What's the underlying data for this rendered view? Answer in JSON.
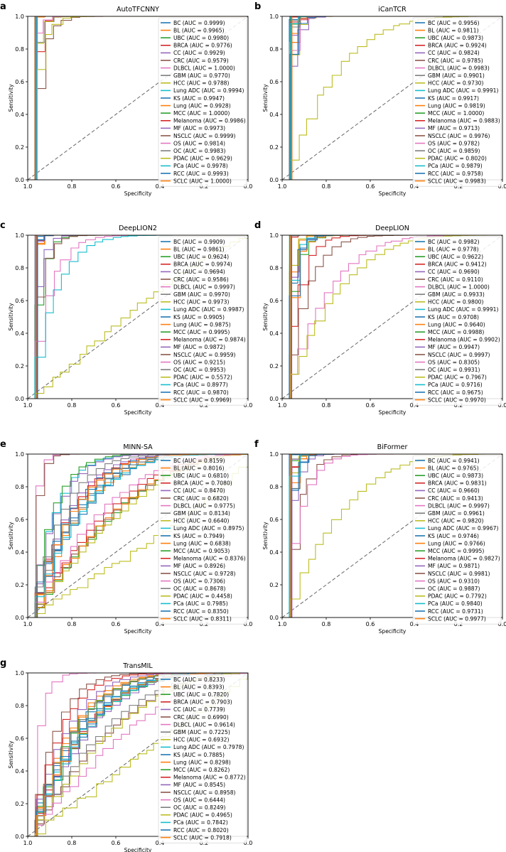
{
  "figure": {
    "x_tick_labels": [
      "1.0",
      "0.8",
      "0.6",
      "0.4",
      "0.2",
      "0.0"
    ],
    "y_tick_labels": [
      "0.0",
      "0.2",
      "0.4",
      "0.6",
      "0.8",
      "1.0"
    ]
  },
  "class_colors": {
    "BC": "#1f77b4",
    "BL": "#ff7f0e",
    "UBC": "#2ca02c",
    "BRCA": "#d62728",
    "CC": "#9467bd",
    "CRC": "#8c564b",
    "DLBCL": "#e377c2",
    "GBM": "#7f7f7f",
    "HCC": "#bcbd22",
    "Lung ADC": "#17becf",
    "KS": "#1f77b4",
    "Lung": "#ff7f0e",
    "MCC": "#2ca02c",
    "Melanoma": "#d62728",
    "MF": "#9467bd",
    "NSCLC": "#8c564b",
    "OS": "#e377c2",
    "OC": "#7f7f7f",
    "PDAC": "#bcbd22",
    "PCa": "#17becf",
    "RCC": "#1f77b4",
    "SCLC": "#ff7f0e"
  },
  "chart_data": [
    {
      "type": "line",
      "panel": "a",
      "title": "AutoTFCNNY",
      "xlabel": "Specificity",
      "ylabel": "Sensitivity",
      "xlim": [
        1.0,
        0.0
      ],
      "ylim": [
        0.0,
        1.0
      ],
      "chance_line": true,
      "series": [
        {
          "name": "BC",
          "auc": "0.9999"
        },
        {
          "name": "BL",
          "auc": "0.9965"
        },
        {
          "name": "UBC",
          "auc": "0.9980"
        },
        {
          "name": "BRCA",
          "auc": "0.9776"
        },
        {
          "name": "CC",
          "auc": "0.9929"
        },
        {
          "name": "CRC",
          "auc": "0.9579"
        },
        {
          "name": "DLBCL",
          "auc": "1.0000"
        },
        {
          "name": "GBM",
          "auc": "0.9770"
        },
        {
          "name": "HCC",
          "auc": "0.9788"
        },
        {
          "name": "Lung ADC",
          "auc": "0.9994"
        },
        {
          "name": "KS",
          "auc": "0.9947"
        },
        {
          "name": "Lung",
          "auc": "0.9928"
        },
        {
          "name": "MCC",
          "auc": "1.0000"
        },
        {
          "name": "Melanoma",
          "auc": "0.9986"
        },
        {
          "name": "MF",
          "auc": "0.9973"
        },
        {
          "name": "NSCLC",
          "auc": "0.9999"
        },
        {
          "name": "OS",
          "auc": "0.9814"
        },
        {
          "name": "OC",
          "auc": "0.9983"
        },
        {
          "name": "PDAC",
          "auc": "0.9629"
        },
        {
          "name": "PCa",
          "auc": "0.9978"
        },
        {
          "name": "RCC",
          "auc": "0.9993"
        },
        {
          "name": "SCLC",
          "auc": "1.0000"
        }
      ]
    },
    {
      "type": "line",
      "panel": "b",
      "title": "iCanTCR",
      "xlabel": "Specificity",
      "ylabel": "Sensitivity",
      "xlim": [
        1.0,
        0.0
      ],
      "ylim": [
        0.0,
        1.0
      ],
      "chance_line": true,
      "series": [
        {
          "name": "BC",
          "auc": "0.9956"
        },
        {
          "name": "BL",
          "auc": "0.9811"
        },
        {
          "name": "UBC",
          "auc": "0.9873"
        },
        {
          "name": "BRCA",
          "auc": "0.9924"
        },
        {
          "name": "CC",
          "auc": "0.9824"
        },
        {
          "name": "CRC",
          "auc": "0.9785"
        },
        {
          "name": "DLBCL",
          "auc": "0.9983"
        },
        {
          "name": "GBM",
          "auc": "0.9901"
        },
        {
          "name": "HCC",
          "auc": "0.9730"
        },
        {
          "name": "Lung ADC",
          "auc": "0.9991"
        },
        {
          "name": "KS",
          "auc": "0.9917"
        },
        {
          "name": "Lung",
          "auc": "0.9819"
        },
        {
          "name": "MCC",
          "auc": "1.0000"
        },
        {
          "name": "Melanoma",
          "auc": "0.9883"
        },
        {
          "name": "MF",
          "auc": "0.9713"
        },
        {
          "name": "NSCLC",
          "auc": "0.9976"
        },
        {
          "name": "OS",
          "auc": "0.9782"
        },
        {
          "name": "OC",
          "auc": "0.9859"
        },
        {
          "name": "PDAC",
          "auc": "0.8020"
        },
        {
          "name": "PCa",
          "auc": "0.9879"
        },
        {
          "name": "RCC",
          "auc": "0.9758"
        },
        {
          "name": "SCLC",
          "auc": "0.9983"
        }
      ]
    },
    {
      "type": "line",
      "panel": "c",
      "title": "DeepLION2",
      "xlabel": "Specificity",
      "ylabel": "Sensitivity",
      "xlim": [
        1.0,
        0.0
      ],
      "ylim": [
        0.0,
        1.0
      ],
      "chance_line": true,
      "series": [
        {
          "name": "BC",
          "auc": "0.9909"
        },
        {
          "name": "BL",
          "auc": "0.9861"
        },
        {
          "name": "UBC",
          "auc": "0.9624"
        },
        {
          "name": "BRCA",
          "auc": "0.9974"
        },
        {
          "name": "CC",
          "auc": "0.9694"
        },
        {
          "name": "CRC",
          "auc": "0.9586"
        },
        {
          "name": "DLBCL",
          "auc": "0.9997"
        },
        {
          "name": "GBM",
          "auc": "0.9970"
        },
        {
          "name": "HCC",
          "auc": "0.9973"
        },
        {
          "name": "Lung ADC",
          "auc": "0.9987"
        },
        {
          "name": "KS",
          "auc": "0.9905"
        },
        {
          "name": "Lung",
          "auc": "0.9875"
        },
        {
          "name": "MCC",
          "auc": "0.9995"
        },
        {
          "name": "Melanoma",
          "auc": "0.9874"
        },
        {
          "name": "MF",
          "auc": "0.9872"
        },
        {
          "name": "NSCLC",
          "auc": "0.9959"
        },
        {
          "name": "OS",
          "auc": "0.9215"
        },
        {
          "name": "OC",
          "auc": "0.9953"
        },
        {
          "name": "PDAC",
          "auc": "0.5572"
        },
        {
          "name": "PCa",
          "auc": "0.8977"
        },
        {
          "name": "RCC",
          "auc": "0.9870"
        },
        {
          "name": "SCLC",
          "auc": "0.9969"
        }
      ]
    },
    {
      "type": "line",
      "panel": "d",
      "title": "DeepLION",
      "xlabel": "Specificity",
      "ylabel": "Sensitivity",
      "xlim": [
        1.0,
        0.0
      ],
      "ylim": [
        0.0,
        1.0
      ],
      "chance_line": true,
      "series": [
        {
          "name": "BC",
          "auc": "0.9982"
        },
        {
          "name": "BL",
          "auc": "0.9778"
        },
        {
          "name": "UBC",
          "auc": "0.9622"
        },
        {
          "name": "BRCA",
          "auc": "0.9412"
        },
        {
          "name": "CC",
          "auc": "0.9690"
        },
        {
          "name": "CRC",
          "auc": "0.9110"
        },
        {
          "name": "DLBCL",
          "auc": "1.0000"
        },
        {
          "name": "GBM",
          "auc": "0.9933"
        },
        {
          "name": "HCC",
          "auc": "0.9800"
        },
        {
          "name": "Lung ADC",
          "auc": "0.9991"
        },
        {
          "name": "KS",
          "auc": "0.9708"
        },
        {
          "name": "Lung",
          "auc": "0.9640"
        },
        {
          "name": "MCC",
          "auc": "0.9988"
        },
        {
          "name": "Melanoma",
          "auc": "0.9902"
        },
        {
          "name": "MF",
          "auc": "0.9947"
        },
        {
          "name": "NSCLC",
          "auc": "0.9997"
        },
        {
          "name": "OS",
          "auc": "0.8305"
        },
        {
          "name": "OC",
          "auc": "0.9931"
        },
        {
          "name": "PDAC",
          "auc": "0.7967"
        },
        {
          "name": "PCa",
          "auc": "0.9716"
        },
        {
          "name": "RCC",
          "auc": "0.9675"
        },
        {
          "name": "SCLC",
          "auc": "0.9970"
        }
      ]
    },
    {
      "type": "line",
      "panel": "e",
      "title": "MINN-SA",
      "xlabel": "Specificity",
      "ylabel": "Sensitivity",
      "xlim": [
        1.0,
        0.0
      ],
      "ylim": [
        0.0,
        1.0
      ],
      "chance_line": true,
      "series": [
        {
          "name": "BC",
          "auc": "0.8159"
        },
        {
          "name": "BL",
          "auc": "0.8016"
        },
        {
          "name": "UBC",
          "auc": "0.6810"
        },
        {
          "name": "BRCA",
          "auc": "0.7080"
        },
        {
          "name": "CC",
          "auc": "0.8470"
        },
        {
          "name": "CRC",
          "auc": "0.6820"
        },
        {
          "name": "DLBCL",
          "auc": "0.9775"
        },
        {
          "name": "GBM",
          "auc": "0.8134"
        },
        {
          "name": "HCC",
          "auc": "0.6640"
        },
        {
          "name": "Lung ADC",
          "auc": "0.8975"
        },
        {
          "name": "KS",
          "auc": "0.7949"
        },
        {
          "name": "Lung",
          "auc": "0.6838"
        },
        {
          "name": "MCC",
          "auc": "0.9053"
        },
        {
          "name": "Melanoma",
          "auc": "0.8376"
        },
        {
          "name": "MF",
          "auc": "0.8926"
        },
        {
          "name": "NSCLC",
          "auc": "0.9728"
        },
        {
          "name": "OS",
          "auc": "0.7306"
        },
        {
          "name": "OC",
          "auc": "0.8678"
        },
        {
          "name": "PDAC",
          "auc": "0.4458"
        },
        {
          "name": "PCa",
          "auc": "0.7985"
        },
        {
          "name": "RCC",
          "auc": "0.8350"
        },
        {
          "name": "SCLC",
          "auc": "0.8311"
        }
      ]
    },
    {
      "type": "line",
      "panel": "f",
      "title": "BiFormer",
      "xlabel": "Specificity",
      "ylabel": "Sensitivity",
      "xlim": [
        1.0,
        0.0
      ],
      "ylim": [
        0.0,
        1.0
      ],
      "chance_line": true,
      "series": [
        {
          "name": "BC",
          "auc": "0.9941"
        },
        {
          "name": "BL",
          "auc": "0.9765"
        },
        {
          "name": "UBC",
          "auc": "0.9873"
        },
        {
          "name": "BRCA",
          "auc": "0.9831"
        },
        {
          "name": "CC",
          "auc": "0.9660"
        },
        {
          "name": "CRC",
          "auc": "0.9413"
        },
        {
          "name": "DLBCL",
          "auc": "0.9997"
        },
        {
          "name": "GBM",
          "auc": "0.9961"
        },
        {
          "name": "HCC",
          "auc": "0.9820"
        },
        {
          "name": "Lung ADC",
          "auc": "0.9967"
        },
        {
          "name": "KS",
          "auc": "0.9746"
        },
        {
          "name": "Lung",
          "auc": "0.9766"
        },
        {
          "name": "MCC",
          "auc": "0.9995"
        },
        {
          "name": "Melanoma",
          "auc": "0.9827"
        },
        {
          "name": "MF",
          "auc": "0.9871"
        },
        {
          "name": "NSCLC",
          "auc": "0.9981"
        },
        {
          "name": "OS",
          "auc": "0.9310"
        },
        {
          "name": "OC",
          "auc": "0.9887"
        },
        {
          "name": "PDAC",
          "auc": "0.7792"
        },
        {
          "name": "PCa",
          "auc": "0.9840"
        },
        {
          "name": "RCC",
          "auc": "0.9731"
        },
        {
          "name": "SCLC",
          "auc": "0.9977"
        }
      ]
    },
    {
      "type": "line",
      "panel": "g",
      "title": "TransMIL",
      "xlabel": "Specificity",
      "ylabel": "Sensitivity",
      "xlim": [
        1.0,
        0.0
      ],
      "ylim": [
        0.0,
        1.0
      ],
      "chance_line": true,
      "series": [
        {
          "name": "BC",
          "auc": "0.8233"
        },
        {
          "name": "BL",
          "auc": "0.8393"
        },
        {
          "name": "UBC",
          "auc": "0.7820"
        },
        {
          "name": "BRCA",
          "auc": "0.7903"
        },
        {
          "name": "CC",
          "auc": "0.7739"
        },
        {
          "name": "CRC",
          "auc": "0.6990"
        },
        {
          "name": "DLBCL",
          "auc": "0.9614"
        },
        {
          "name": "GBM",
          "auc": "0.7225"
        },
        {
          "name": "HCC",
          "auc": "0.6932"
        },
        {
          "name": "Lung ADC",
          "auc": "0.7978"
        },
        {
          "name": "KS",
          "auc": "0.7885"
        },
        {
          "name": "Lung",
          "auc": "0.8298"
        },
        {
          "name": "MCC",
          "auc": "0.8262"
        },
        {
          "name": "Melanoma",
          "auc": "0.8772"
        },
        {
          "name": "MF",
          "auc": "0.8545"
        },
        {
          "name": "NSCLC",
          "auc": "0.8958"
        },
        {
          "name": "OS",
          "auc": "0.6444"
        },
        {
          "name": "OC",
          "auc": "0.8249"
        },
        {
          "name": "PDAC",
          "auc": "0.4965"
        },
        {
          "name": "PCa",
          "auc": "0.7842"
        },
        {
          "name": "RCC",
          "auc": "0.8020"
        },
        {
          "name": "SCLC",
          "auc": "0.7918"
        }
      ]
    }
  ]
}
